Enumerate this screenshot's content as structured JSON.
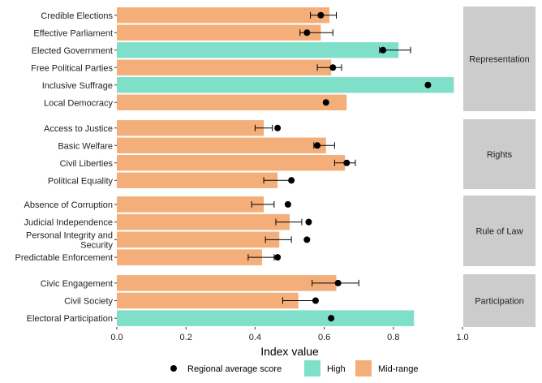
{
  "chart_data": {
    "type": "bar",
    "orientation": "horizontal",
    "xlabel": "Index value",
    "xlim": [
      0,
      1.0
    ],
    "xticks": [
      "0.0",
      "0.2",
      "0.4",
      "0.6",
      "0.8",
      "1.0"
    ],
    "grid": false,
    "legend_position": "bottom",
    "legend": {
      "dot_label": "Regional average score",
      "fill_items": [
        {
          "label": "High",
          "color": "#7fdfc9"
        },
        {
          "label": "Mid-range",
          "color": "#f4ae7a"
        }
      ]
    },
    "colors": {
      "high": "#7fdfc9",
      "mid": "#f4ae7a",
      "strip": "#cccccc",
      "dot": "#000000"
    },
    "facets": [
      {
        "name": "Representation",
        "rows": [
          {
            "label": "Credible Elections",
            "value": 0.615,
            "level": "Mid-range",
            "avg": 0.59,
            "err": [
              0.56,
              0.635
            ]
          },
          {
            "label": "Effective Parliament",
            "value": 0.59,
            "level": "Mid-range",
            "avg": 0.55,
            "err": [
              0.53,
              0.625
            ]
          },
          {
            "label": "Elected Government",
            "value": 0.815,
            "level": "High",
            "avg": 0.77,
            "err": [
              0.76,
              0.85
            ]
          },
          {
            "label": "Free Political Parties",
            "value": 0.62,
            "level": "Mid-range",
            "avg": 0.625,
            "err": [
              0.58,
              0.65
            ]
          },
          {
            "label": "Inclusive Suffrage",
            "value": 0.975,
            "level": "High",
            "avg": 0.9,
            "err": null
          },
          {
            "label": "Local Democracy",
            "value": 0.665,
            "level": "Mid-range",
            "avg": 0.605,
            "err": null
          }
        ]
      },
      {
        "name": "Rights",
        "rows": [
          {
            "label": "Access to Justice",
            "value": 0.425,
            "level": "Mid-range",
            "avg": 0.465,
            "err": [
              0.4,
              0.45
            ]
          },
          {
            "label": "Basic Welfare",
            "value": 0.605,
            "level": "Mid-range",
            "avg": 0.58,
            "err": [
              0.57,
              0.63
            ]
          },
          {
            "label": "Civil Liberties",
            "value": 0.66,
            "level": "Mid-range",
            "avg": 0.665,
            "err": [
              0.63,
              0.69
            ]
          },
          {
            "label": "Political Equality",
            "value": 0.465,
            "level": "Mid-range",
            "avg": 0.505,
            "err": [
              0.425,
              0.505
            ]
          }
        ]
      },
      {
        "name": "Rule of Law",
        "rows": [
          {
            "label": "Absence of Corruption",
            "value": 0.425,
            "level": "Mid-range",
            "avg": 0.495,
            "err": [
              0.39,
              0.455
            ]
          },
          {
            "label": "Judicial Independence",
            "value": 0.5,
            "level": "Mid-range",
            "avg": 0.555,
            "err": [
              0.46,
              0.535
            ]
          },
          {
            "label": "Personal Integrity and Security",
            "value": 0.47,
            "level": "Mid-range",
            "avg": 0.55,
            "err": [
              0.43,
              0.505
            ]
          },
          {
            "label": "Predictable Enforcement",
            "value": 0.42,
            "level": "Mid-range",
            "avg": 0.465,
            "err": [
              0.38,
              0.455
            ]
          }
        ]
      },
      {
        "name": "Participation",
        "rows": [
          {
            "label": "Civic Engagement",
            "value": 0.635,
            "level": "Mid-range",
            "avg": 0.64,
            "err": [
              0.565,
              0.7
            ]
          },
          {
            "label": "Civil Society",
            "value": 0.525,
            "level": "Mid-range",
            "avg": 0.575,
            "err": [
              0.48,
              0.575
            ]
          },
          {
            "label": "Electoral Participation",
            "value": 0.86,
            "level": "High",
            "avg": 0.62,
            "err": null
          }
        ]
      }
    ]
  }
}
